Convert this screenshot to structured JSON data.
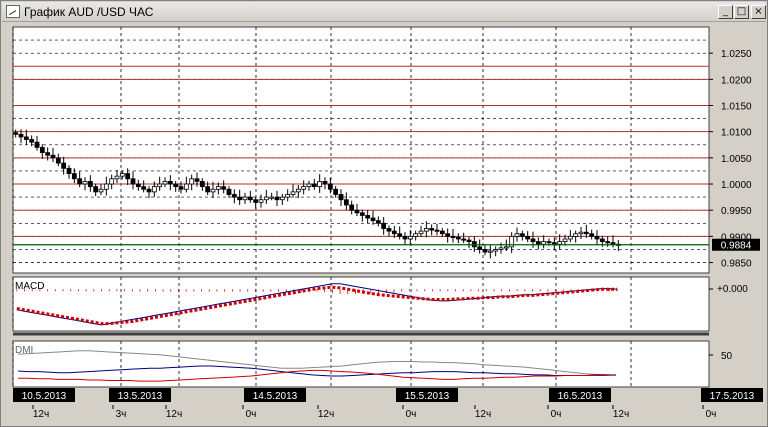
{
  "window": {
    "title": "График AUD /USD ЧАС",
    "min_glyph": "_",
    "max_glyph": "□",
    "close_glyph": "×"
  },
  "colors": {
    "background": "#ffffff",
    "frame": "#d4d0c8",
    "level_line": "#b03030",
    "price_marker_line": "#006000",
    "macd_line": "#000080",
    "signal_line": "#cc0000",
    "histogram": "#cc0000",
    "dmi_adx": "#888888",
    "dmi_plus": "#000080",
    "dmi_minus": "#cc0000"
  },
  "price_panel": {
    "ymin": 0.983,
    "ymax": 1.03,
    "ticks": [
      "1.0250",
      "1.0200",
      "1.0150",
      "1.0100",
      "1.0050",
      "1.0000",
      "0.9950",
      "0.9900",
      "0.9850"
    ],
    "tick_values": [
      1.025,
      1.02,
      1.015,
      1.01,
      1.005,
      1.0,
      0.995,
      0.99,
      0.985
    ],
    "red_levels": [
      1.0225,
      1.02,
      1.015,
      1.01,
      1.005,
      1.0,
      0.995,
      0.99
    ],
    "current_price": "0.9884",
    "current_value": 0.9884
  },
  "macd_panel": {
    "label": "MACD",
    "tick": "+0.000"
  },
  "dmi_panel": {
    "label": "DMI",
    "tick": "50"
  },
  "time_axis": {
    "date_labels": [
      "10.5.2013",
      "13.5.2013",
      "14.5.2013",
      "15.5.2013",
      "16.5.2013",
      "17.5.2013"
    ],
    "hour_labels": [
      "12ч",
      "3ч",
      "12ч",
      "0ч",
      "12ч",
      "0ч",
      "12ч",
      "0ч",
      "12ч",
      "0ч"
    ]
  },
  "chart_data": {
    "type": "candlestick",
    "symbol": "AUD/USD",
    "timeframe": "H1",
    "close_series": [
      1.0095,
      1.009,
      1.0085,
      1.008,
      1.007,
      1.006,
      1.0055,
      1.005,
      1.004,
      1.003,
      1.002,
      1.001,
      1.0,
      1.0005,
      0.9995,
      0.9985,
      0.999,
      1.0,
      1.001,
      1.0015,
      1.002,
      1.001,
      1.0,
      0.9995,
      0.999,
      0.9985,
      0.9995,
      1.0,
      1.0005,
      1.0,
      0.9995,
      0.999,
      1.0,
      1.001,
      1.0005,
      0.9995,
      0.9985,
      0.999,
      0.9995,
      0.999,
      0.998,
      0.9975,
      0.997,
      0.9975,
      0.997,
      0.9965,
      0.997,
      0.9975,
      0.9975,
      0.997,
      0.9975,
      0.998,
      0.9985,
      0.999,
      0.9995,
      1.0,
      0.9995,
      1.0005,
      1.0,
      0.999,
      0.998,
      0.997,
      0.996,
      0.995,
      0.9945,
      0.994,
      0.9935,
      0.993,
      0.9925,
      0.9915,
      0.991,
      0.9905,
      0.99,
      0.9895,
      0.99,
      0.9905,
      0.991,
      0.9915,
      0.9912,
      0.991,
      0.9905,
      0.99,
      0.9898,
      0.9895,
      0.9893,
      0.989,
      0.988,
      0.9875,
      0.987,
      0.9872,
      0.9875,
      0.9878,
      0.988,
      0.99,
      0.9905,
      0.99,
      0.9895,
      0.989,
      0.9885,
      0.989,
      0.9888,
      0.9885,
      0.989,
      0.9895,
      0.99,
      0.9905,
      0.9908,
      0.9905,
      0.99,
      0.9895,
      0.989,
      0.9888,
      0.9885,
      0.9884
    ],
    "macd_series": [
      -0.003,
      -0.0032,
      -0.0034,
      -0.0036,
      -0.0038,
      -0.004,
      -0.0042,
      -0.0044,
      -0.0046,
      -0.0048,
      -0.005,
      -0.0052,
      -0.005,
      -0.0048,
      -0.0046,
      -0.0044,
      -0.0042,
      -0.004,
      -0.0038,
      -0.0036,
      -0.0034,
      -0.0032,
      -0.003,
      -0.0028,
      -0.0026,
      -0.0024,
      -0.0022,
      -0.002,
      -0.0018,
      -0.0016,
      -0.0014,
      -0.0012,
      -0.001,
      -0.0008,
      -0.0006,
      -0.0004,
      -0.0002,
      0.0,
      0.0002,
      0.0004,
      0.0006,
      0.0008,
      0.0008,
      0.0006,
      0.0004,
      0.0002,
      0.0,
      -0.0002,
      -0.0004,
      -0.0006,
      -0.0008,
      -0.001,
      -0.0012,
      -0.0014,
      -0.0016,
      -0.0017,
      -0.0017,
      -0.0016,
      -0.0015,
      -0.0014,
      -0.0013,
      -0.0012,
      -0.0011,
      -0.001,
      -0.001,
      -0.0009,
      -0.0008,
      -0.0008,
      -0.0007,
      -0.0006,
      -0.0005,
      -0.0004,
      -0.0003,
      -0.0002,
      -0.0001,
      0.0,
      0.0001,
      0.0001,
      0.0
    ],
    "signal_series": [
      -0.0028,
      -0.003,
      -0.0032,
      -0.0034,
      -0.0036,
      -0.0038,
      -0.004,
      -0.0042,
      -0.0044,
      -0.0046,
      -0.0048,
      -0.005,
      -0.005,
      -0.0049,
      -0.0048,
      -0.0047,
      -0.0045,
      -0.0043,
      -0.0041,
      -0.0039,
      -0.0037,
      -0.0035,
      -0.0033,
      -0.0031,
      -0.0029,
      -0.0027,
      -0.0025,
      -0.0023,
      -0.0021,
      -0.0019,
      -0.0017,
      -0.0015,
      -0.0013,
      -0.0011,
      -0.0009,
      -0.0007,
      -0.0005,
      -0.0003,
      -0.0001,
      0.0001,
      0.0002,
      0.0003,
      0.0002,
      0.0,
      -0.0002,
      -0.0004,
      -0.0006,
      -0.0008,
      -0.0009,
      -0.001,
      -0.0011,
      -0.0012,
      -0.0013,
      -0.0014,
      -0.0015,
      -0.0015,
      -0.0015,
      -0.0014,
      -0.0014,
      -0.0013,
      -0.0013,
      -0.0012,
      -0.0012,
      -0.0011,
      -0.0011,
      -0.001,
      -0.0009,
      -0.0009,
      -0.0008,
      -0.0007,
      -0.0006,
      -0.0005,
      -0.0004,
      -0.0003,
      -0.0002,
      -0.0001,
      0.0,
      0.0,
      0.0
    ],
    "dmi_adx": [
      55,
      56,
      57,
      58,
      59,
      60,
      61,
      61,
      60,
      59,
      58,
      57,
      56,
      55,
      54,
      52,
      50,
      48,
      46,
      44,
      42,
      40,
      38,
      36,
      34,
      32,
      30,
      30,
      30,
      31,
      32,
      33,
      34,
      36,
      38,
      40,
      41,
      42,
      42,
      42,
      41,
      41,
      40,
      40,
      39,
      38,
      36,
      35,
      34,
      33,
      32,
      30,
      28,
      26,
      24,
      22,
      20,
      19,
      18,
      17
    ],
    "dmi_plus": [
      25,
      24,
      24,
      23,
      22,
      22,
      23,
      24,
      25,
      26,
      27,
      28,
      29,
      30,
      30,
      31,
      32,
      33,
      34,
      34,
      33,
      32,
      31,
      30,
      28,
      26,
      24,
      22,
      20,
      18,
      17,
      16,
      16,
      17,
      18,
      19,
      20,
      21,
      22,
      22,
      23,
      24,
      24,
      24,
      23,
      22,
      22,
      21,
      20,
      20,
      19,
      18,
      18,
      17,
      17,
      17,
      17,
      18,
      18,
      18
    ],
    "dmi_minus": [
      12,
      12,
      11,
      11,
      10,
      10,
      10,
      9,
      9,
      8,
      8,
      8,
      7,
      7,
      7,
      8,
      9,
      10,
      11,
      12,
      13,
      14,
      15,
      16,
      18,
      20,
      22,
      24,
      25,
      26,
      26,
      25,
      24,
      23,
      22,
      20,
      18,
      16,
      14,
      13,
      12,
      11,
      10,
      10,
      11,
      12,
      12,
      13,
      14,
      14,
      15,
      16,
      16,
      16,
      17,
      17,
      17,
      17,
      17,
      18
    ]
  }
}
